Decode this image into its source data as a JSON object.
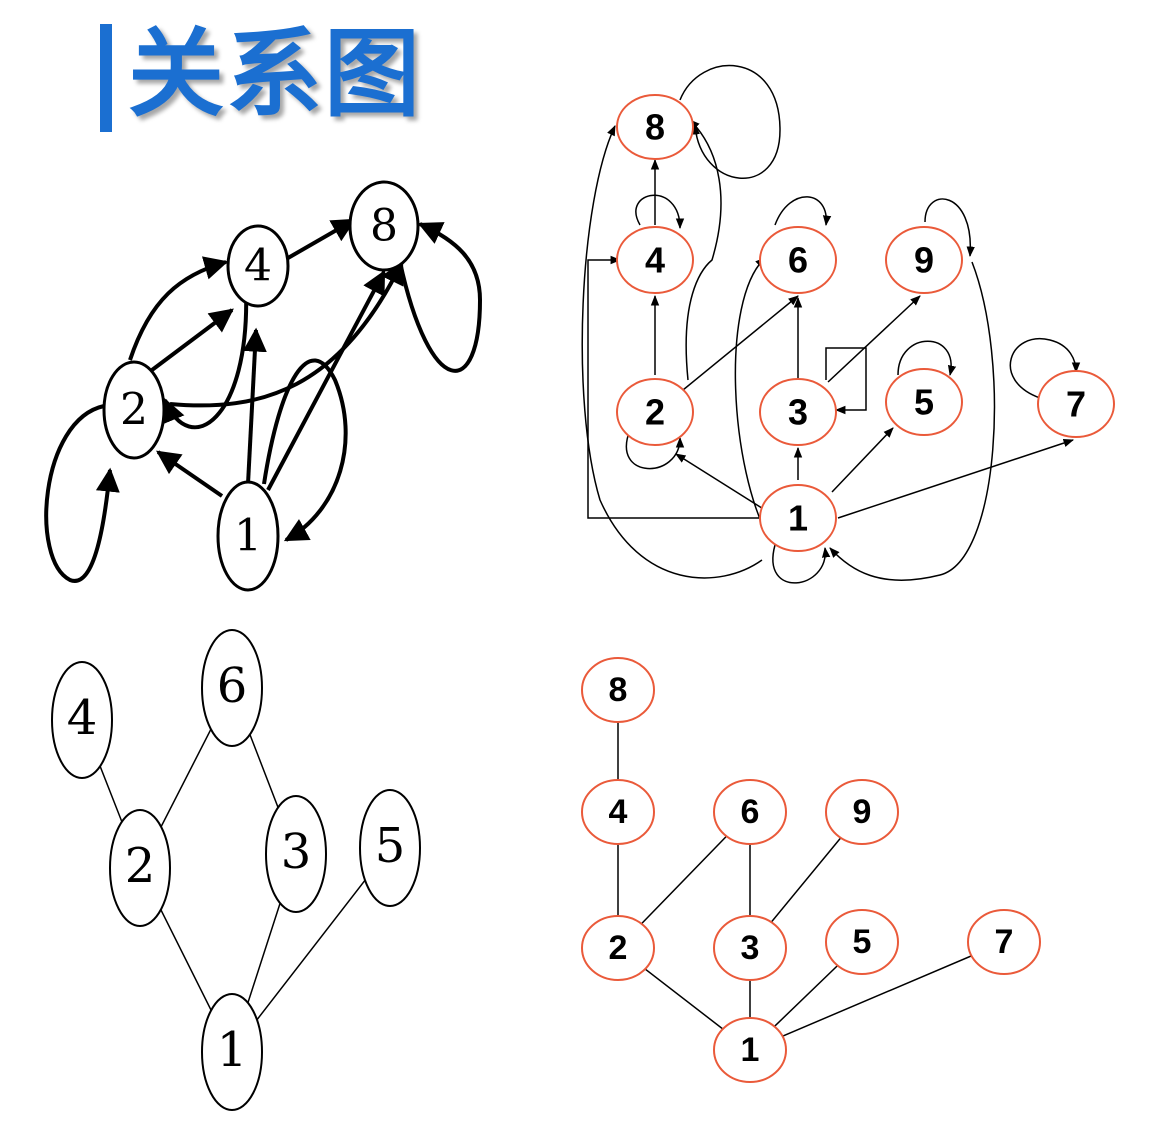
{
  "title": "关系图",
  "colors": {
    "title": "#1b6fd1",
    "node_red": "#ea5a3a",
    "line": "#000000"
  },
  "diagrams": {
    "top_left": {
      "nodes": [
        "8",
        "4",
        "2",
        "1"
      ]
    },
    "top_right": {
      "nodes": [
        "8",
        "4",
        "6",
        "9",
        "2",
        "3",
        "5",
        "7",
        "1"
      ]
    },
    "bottom_left": {
      "nodes": [
        "4",
        "6",
        "2",
        "3",
        "5",
        "1"
      ]
    },
    "bottom_right": {
      "nodes": [
        "8",
        "4",
        "6",
        "9",
        "2",
        "3",
        "5",
        "7",
        "1"
      ]
    }
  }
}
